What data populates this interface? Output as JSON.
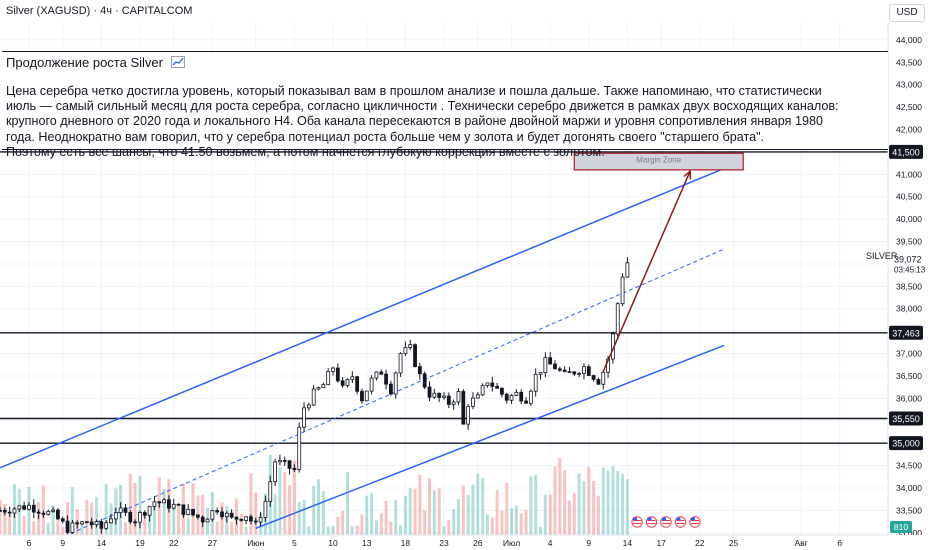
{
  "header": {
    "symbol_line": "Silver (XAGUSD) · 4ч · CAPITALCOM",
    "currency": "USD"
  },
  "idea": {
    "title": "Продолжение роста Silver",
    "title_icon": "chart-up-icon",
    "lines": [
      "Цена серебра четко достигла уровень, который показывал вам в прошлом анализе  и пошла дальше. Также напоминаю, что статистически",
      "июль — самый сильный месяц для роста серебра, согласно цикличности . Технически серебро движется в рамках двух восходящих каналов:",
      "крупного дневного от 2020 года и локального H4. Оба канала пересекаются в районе двойной маржи и уровня сопротивления января 1980",
      "года. Неоднократно вам говорил, что у серебра потенциал роста больше чем у золота и будет догонять своего \"старшего брата\".",
      "Поэтому есть все шансы, что 41.50 возьмем, а потом начнется глубокую коррекция вместе с золотом."
    ]
  },
  "chart_data": {
    "type": "candlestick",
    "instrument": "SILVER",
    "last_price": "39,072",
    "countdown": "03:45:13",
    "volume_badge": "810",
    "ylim": [
      32.95,
      44.4
    ],
    "xlim": [
      0,
      92
    ],
    "y_ticks": [
      "33,000",
      "33,500",
      "34,000",
      "34,500",
      "35,000",
      "35,500",
      "36,000",
      "36,500",
      "37,000",
      "37,500",
      "38,000",
      "38,500",
      "39,000",
      "39,500",
      "40,000",
      "40,500",
      "41,000",
      "41,500",
      "42,000",
      "42,500",
      "43,000",
      "43,500",
      "44,000"
    ],
    "x_ticks": [
      {
        "label": "6",
        "x": 3
      },
      {
        "label": "9",
        "x": 6.5
      },
      {
        "label": "14",
        "x": 10.5
      },
      {
        "label": "19",
        "x": 14.5
      },
      {
        "label": "22",
        "x": 18
      },
      {
        "label": "27",
        "x": 22
      },
      {
        "label": "Июн",
        "x": 26.5
      },
      {
        "label": "5",
        "x": 30.5
      },
      {
        "label": "10",
        "x": 34.5
      },
      {
        "label": "13",
        "x": 38
      },
      {
        "label": "18",
        "x": 42
      },
      {
        "label": "23",
        "x": 46
      },
      {
        "label": "26",
        "x": 49.5
      },
      {
        "label": "Июл",
        "x": 53
      },
      {
        "label": "4",
        "x": 57
      },
      {
        "label": "9",
        "x": 61
      },
      {
        "label": "14",
        "x": 65
      },
      {
        "label": "17",
        "x": 68.5
      },
      {
        "label": "22",
        "x": 72.5
      },
      {
        "label": "25",
        "x": 76
      },
      {
        "label": "Авг",
        "x": 83
      },
      {
        "label": "6",
        "x": 87
      }
    ],
    "levels": [
      {
        "price": 41.5,
        "label": "41,500"
      },
      {
        "price": 37.463,
        "label": "37,463"
      },
      {
        "price": 35.55,
        "label": "35,550"
      },
      {
        "price": 35.0,
        "label": "35,000"
      }
    ],
    "margin_zone": {
      "label": "Margin Zone",
      "x0": 59.5,
      "x1": 77,
      "y0": 41.1,
      "y1": 41.47
    },
    "channel_upper": [
      [
        0,
        34.45
      ],
      [
        75,
        41.13
      ]
    ],
    "channel_lower": [
      [
        26.5,
        33.1
      ],
      [
        75,
        37.18
      ]
    ],
    "channel_mid": [
      [
        0,
        32.3
      ],
      [
        75,
        39.33
      ]
    ],
    "projection_arrow": [
      [
        62.5,
        36.6
      ],
      [
        71.5,
        41.07
      ]
    ],
    "close_path": [
      [
        0,
        33.5
      ],
      [
        3,
        33.6
      ],
      [
        5.5,
        33.4
      ],
      [
        7,
        33.1
      ],
      [
        9,
        33.25
      ],
      [
        10.5,
        33.1
      ],
      [
        12,
        33.5
      ],
      [
        14,
        33.3
      ],
      [
        16,
        33.7
      ],
      [
        18,
        33.6
      ],
      [
        19.5,
        33.45
      ],
      [
        21,
        33.3
      ],
      [
        22.5,
        33.55
      ],
      [
        24,
        33.3
      ],
      [
        25.5,
        33.4
      ],
      [
        26.5,
        33.15
      ],
      [
        27.5,
        33.7
      ],
      [
        28.5,
        34.6
      ],
      [
        29.5,
        34.5
      ],
      [
        30.5,
        34.4
      ],
      [
        31,
        35.3
      ],
      [
        31.5,
        35.8
      ],
      [
        32.5,
        36.1
      ],
      [
        33.5,
        36.3
      ],
      [
        34.5,
        36.7
      ],
      [
        35.5,
        36.2
      ],
      [
        36.5,
        36.5
      ],
      [
        37.5,
        36.0
      ],
      [
        38.5,
        36.4
      ],
      [
        39.5,
        36.6
      ],
      [
        40.5,
        36.2
      ],
      [
        41.5,
        37.0
      ],
      [
        42.5,
        37.1
      ],
      [
        43.5,
        36.5
      ],
      [
        44.5,
        36.1
      ],
      [
        45.5,
        36.0
      ],
      [
        46.5,
        35.9
      ],
      [
        47.5,
        36.1
      ],
      [
        48,
        35.4
      ],
      [
        48.5,
        35.9
      ],
      [
        49.5,
        36.0
      ],
      [
        50.5,
        36.4
      ],
      [
        51.5,
        36.2
      ],
      [
        52.5,
        36.0
      ],
      [
        53.5,
        36.1
      ],
      [
        54.5,
        36.0
      ],
      [
        55.5,
        36.5
      ],
      [
        56.5,
        36.8
      ],
      [
        57.5,
        36.7
      ],
      [
        58.5,
        36.5
      ],
      [
        59.5,
        36.6
      ],
      [
        60.5,
        36.7
      ],
      [
        61.5,
        36.5
      ],
      [
        62,
        36.4
      ],
      [
        62.5,
        36.6
      ],
      [
        63.2,
        37.0
      ],
      [
        63.8,
        37.8
      ],
      [
        64.3,
        38.6
      ],
      [
        64.8,
        39.0
      ],
      [
        65.2,
        39.07
      ]
    ]
  }
}
